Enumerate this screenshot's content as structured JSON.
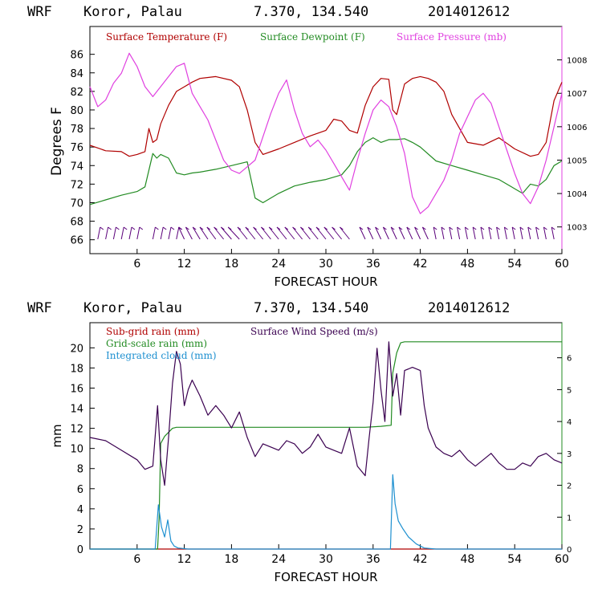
{
  "header": {
    "model": "WRF",
    "location": "Koror, Palau",
    "coords": "7.370, 134.540",
    "init_time": "2014012612"
  },
  "colors": {
    "temperature": "#b00000",
    "dewpoint": "#228b22",
    "pressure": "#e040e0",
    "wind_barb": "#5a007a",
    "subgrid_rain": "#b00000",
    "wind_speed": "#3a0050",
    "gridscale_rain": "#228b22",
    "cloud": "#1e90d0"
  },
  "chart_data": [
    {
      "type": "line",
      "title": "WRF Koror, Palau 7.370, 134.540 2014012612",
      "xlabel": "FORECAST HOUR",
      "ylabel": "Degrees F",
      "xlim": [
        0,
        60
      ],
      "ylim": [
        64.5,
        89
      ],
      "y2lim": [
        1002.2,
        1009
      ],
      "x_ticks": [
        6,
        12,
        18,
        24,
        30,
        36,
        42,
        48,
        54,
        60
      ],
      "y_ticks": [
        66,
        68,
        70,
        72,
        74,
        76,
        78,
        80,
        82,
        84,
        86
      ],
      "y2_ticks": [
        1003,
        1004,
        1005,
        1006,
        1007,
        1008
      ],
      "series": [
        {
          "name": "Surface Temperature (F)",
          "axis": "left",
          "x": [
            0,
            2,
            4,
            5,
            6,
            7,
            7.5,
            8,
            8.5,
            9,
            10,
            11,
            12,
            13,
            14,
            16,
            18,
            19,
            20,
            21,
            22,
            24,
            26,
            28,
            30,
            31,
            32,
            33,
            34,
            35,
            36,
            37,
            38,
            38.5,
            39,
            40,
            41,
            42,
            43,
            44,
            45,
            46,
            47,
            48,
            50,
            52,
            54,
            56,
            57,
            58,
            59,
            60
          ],
          "values": [
            76.2,
            75.6,
            75.5,
            75.0,
            75.2,
            75.5,
            78.0,
            76.5,
            76.8,
            78.5,
            80.5,
            82.0,
            82.5,
            83.0,
            83.4,
            83.6,
            83.2,
            82.5,
            80.0,
            76.5,
            75.2,
            75.8,
            76.5,
            77.2,
            77.8,
            79.0,
            78.8,
            77.8,
            77.5,
            80.5,
            82.5,
            83.4,
            83.3,
            80.0,
            79.5,
            82.8,
            83.4,
            83.6,
            83.4,
            83.0,
            82.0,
            79.5,
            78.0,
            76.5,
            76.2,
            77.0,
            75.8,
            75.0,
            75.2,
            76.5,
            81.0,
            83.0
          ]
        },
        {
          "name": "Surface Dewpoint (F)",
          "axis": "left",
          "x": [
            0,
            2,
            4,
            6,
            7,
            8,
            8.5,
            9,
            10,
            11,
            12,
            13,
            14,
            16,
            18,
            20,
            21,
            22,
            24,
            26,
            28,
            30,
            32,
            33,
            34,
            35,
            36,
            37,
            38,
            39,
            40,
            41,
            42,
            44,
            46,
            48,
            50,
            52,
            54,
            55,
            56,
            57,
            58,
            59,
            60
          ],
          "values": [
            69.8,
            70.3,
            70.8,
            71.2,
            71.7,
            75.3,
            74.8,
            75.2,
            74.8,
            73.2,
            73.0,
            73.2,
            73.3,
            73.6,
            74.0,
            74.4,
            70.5,
            70.0,
            71.0,
            71.8,
            72.2,
            72.5,
            73.0,
            74.0,
            75.5,
            76.5,
            77.0,
            76.5,
            76.8,
            76.8,
            76.9,
            76.5,
            76.0,
            74.5,
            74.0,
            73.5,
            73.0,
            72.5,
            71.5,
            71.0,
            72.0,
            71.8,
            72.5,
            74.0,
            74.5
          ]
        },
        {
          "name": "Surface Pressure (mb)",
          "axis": "right",
          "x": [
            0,
            1,
            2,
            3,
            4,
            5,
            6,
            7,
            8,
            9,
            10,
            11,
            12,
            13,
            14,
            15,
            16,
            17,
            18,
            19,
            20,
            21,
            22,
            23,
            24,
            25,
            26,
            27,
            28,
            29,
            30,
            31,
            32,
            33,
            34,
            35,
            36,
            37,
            38,
            39,
            40,
            41,
            42,
            43,
            44,
            45,
            46,
            47,
            48,
            49,
            50,
            51,
            52,
            53,
            54,
            55,
            56,
            57,
            58,
            59,
            60
          ],
          "values": [
            1007.2,
            1006.6,
            1006.8,
            1007.3,
            1007.6,
            1008.2,
            1007.8,
            1007.2,
            1006.9,
            1007.2,
            1007.5,
            1007.8,
            1007.9,
            1007.0,
            1006.6,
            1006.2,
            1005.6,
            1005.0,
            1004.7,
            1004.6,
            1004.8,
            1005.0,
            1005.7,
            1006.4,
            1007.0,
            1007.4,
            1006.5,
            1005.8,
            1005.4,
            1005.6,
            1005.3,
            1004.9,
            1004.5,
            1004.1,
            1005.0,
            1005.8,
            1006.5,
            1006.8,
            1006.6,
            1006.0,
            1005.2,
            1003.9,
            1003.4,
            1003.6,
            1004.0,
            1004.4,
            1005.0,
            1005.8,
            1006.3,
            1006.8,
            1007.0,
            1006.7,
            1006.0,
            1005.3,
            1004.6,
            1004.0,
            1003.7,
            1004.2,
            1005.0,
            1006.0,
            1007.0
          ]
        }
      ],
      "legend": [
        "Surface Temperature (F)",
        "Surface Dewpoint (F)",
        "Surface Pressure (mb)"
      ],
      "annotations": "wind barbs along bottom of panel"
    },
    {
      "type": "line",
      "title": "WRF Koror, Palau 7.370, 134.540 2014012612",
      "xlabel": "FORECAST HOUR",
      "ylabel": "mm",
      "xlim": [
        0,
        60
      ],
      "ylim": [
        0,
        22.5
      ],
      "y2lim": [
        0,
        7.1
      ],
      "x_ticks": [
        6,
        12,
        18,
        24,
        30,
        36,
        42,
        48,
        54,
        60
      ],
      "y_ticks": [
        0,
        2,
        4,
        6,
        8,
        10,
        12,
        14,
        16,
        18,
        20
      ],
      "y2_ticks": [
        0,
        1,
        2,
        3,
        4,
        5,
        6
      ],
      "series": [
        {
          "name": "Sub-grid rain (mm)",
          "axis": "left",
          "x": [
            0,
            60
          ],
          "values": [
            0,
            0
          ]
        },
        {
          "name": "Grid-scale rain (mm)",
          "axis": "left",
          "x": [
            0,
            8.6,
            8.8,
            9.0,
            9.5,
            10.0,
            10.5,
            11.0,
            12.0,
            20,
            30,
            35,
            37,
            38.3,
            38.5,
            39.0,
            39.5,
            40.0,
            50,
            60
          ],
          "values": [
            0,
            0,
            3.0,
            10.5,
            11.2,
            11.6,
            12.0,
            12.1,
            12.1,
            12.1,
            12.1,
            12.1,
            12.2,
            12.3,
            17.5,
            19.5,
            20.5,
            20.6,
            20.6,
            20.6
          ]
        },
        {
          "name": "Integrated cloud (mm)",
          "axis": "left",
          "x": [
            0,
            8.3,
            8.7,
            9.1,
            9.5,
            9.9,
            10.3,
            10.7,
            11.2,
            12.5,
            37.5,
            38.2,
            38.5,
            38.8,
            39.2,
            39.8,
            40.5,
            41.5,
            42.5,
            44,
            60
          ],
          "values": [
            0,
            0,
            4.4,
            2.2,
            1.2,
            2.9,
            0.8,
            0.3,
            0.1,
            0,
            0,
            0,
            7.4,
            4.5,
            2.8,
            2.0,
            1.2,
            0.5,
            0.1,
            0,
            0
          ]
        },
        {
          "name": "Surface Wind Speed (m/s)",
          "axis": "right",
          "x": [
            0,
            2,
            4,
            6,
            7,
            8,
            8.6,
            9,
            9.5,
            10,
            10.5,
            11,
            11.5,
            12,
            12.5,
            13,
            14,
            15,
            16,
            17,
            18,
            19,
            20,
            21,
            22,
            23,
            24,
            25,
            26,
            27,
            28,
            29,
            30,
            31,
            32,
            33,
            34,
            35,
            35.5,
            36,
            36.5,
            37,
            37.5,
            38,
            38.5,
            39,
            39.5,
            40,
            41,
            42,
            42.5,
            43,
            44,
            45,
            46,
            47,
            48,
            49,
            50,
            51,
            52,
            53,
            54,
            55,
            56,
            57,
            58,
            59,
            60
          ],
          "values": [
            3.5,
            3.4,
            3.1,
            2.8,
            2.5,
            2.6,
            4.5,
            2.8,
            2.0,
            3.5,
            5.2,
            6.2,
            5.8,
            4.5,
            5.0,
            5.3,
            4.8,
            4.2,
            4.5,
            4.2,
            3.8,
            4.3,
            3.5,
            2.9,
            3.3,
            3.2,
            3.1,
            3.4,
            3.3,
            3.0,
            3.2,
            3.6,
            3.2,
            3.1,
            3.0,
            3.8,
            2.6,
            2.3,
            3.5,
            4.6,
            6.3,
            5.0,
            4.0,
            6.5,
            4.8,
            5.5,
            4.2,
            5.6,
            5.7,
            5.6,
            4.5,
            3.8,
            3.2,
            3.0,
            2.9,
            3.1,
            2.8,
            2.6,
            2.8,
            3.0,
            2.7,
            2.5,
            2.5,
            2.7,
            2.6,
            2.9,
            3.0,
            2.8,
            2.7
          ]
        }
      ],
      "legend": [
        "Sub-grid rain (mm)",
        "Surface Wind Speed (m/s)",
        "Grid-scale rain (mm)",
        "Integrated cloud (mm)"
      ]
    }
  ]
}
